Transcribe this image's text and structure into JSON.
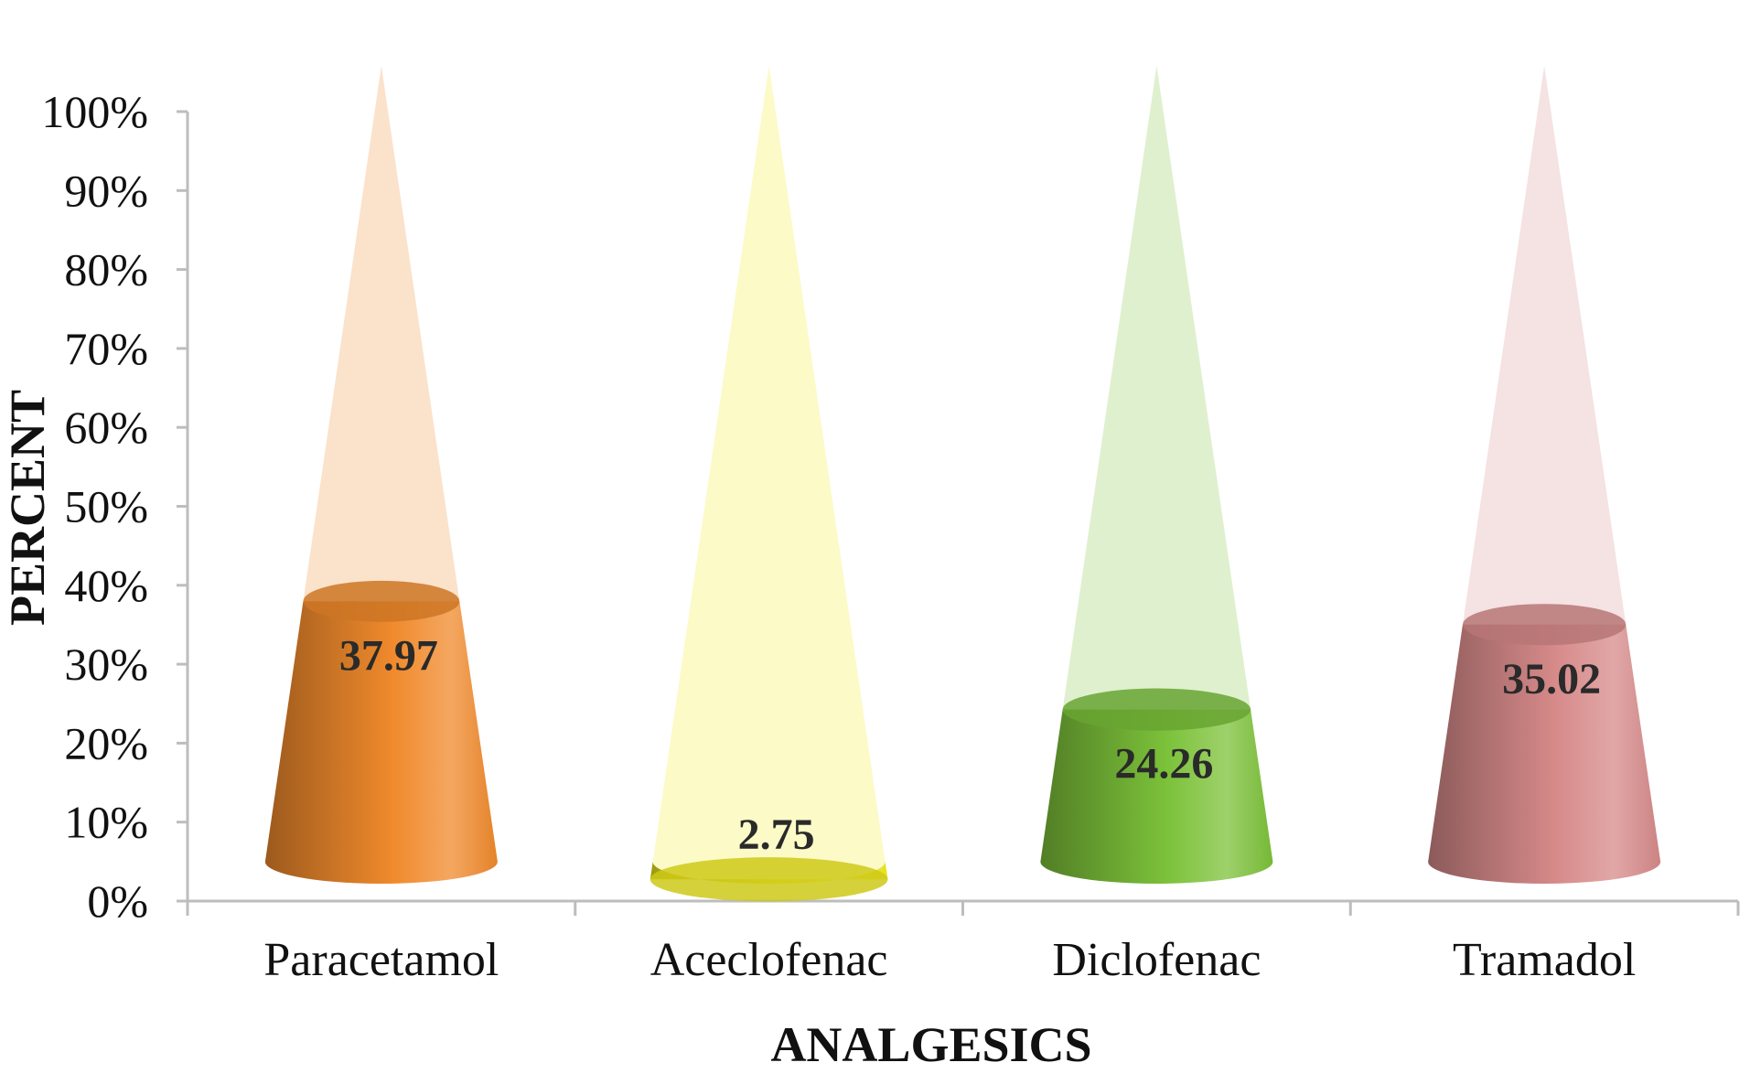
{
  "chart_data": {
    "type": "bar",
    "bar_shape": "cone",
    "categories": [
      "Paracetamol",
      "Aceclofenac",
      "Diclofenac",
      "Tramadol"
    ],
    "values": [
      37.97,
      2.75,
      24.26,
      35.02
    ],
    "value_labels": [
      "37.97",
      "2.75",
      "24.26",
      "35.02"
    ],
    "xlabel": "ANALGESICS",
    "ylabel": "PERCENT",
    "ylim": [
      0,
      100
    ],
    "yticks": [
      "0%",
      "10%",
      "20%",
      "30%",
      "40%",
      "50%",
      "60%",
      "70%",
      "80%",
      "90%",
      "100%"
    ],
    "grid": false,
    "legend": "none",
    "colors": [
      "#f08a2c",
      "#f2ec1c",
      "#7cc23a",
      "#d78a8a"
    ]
  }
}
